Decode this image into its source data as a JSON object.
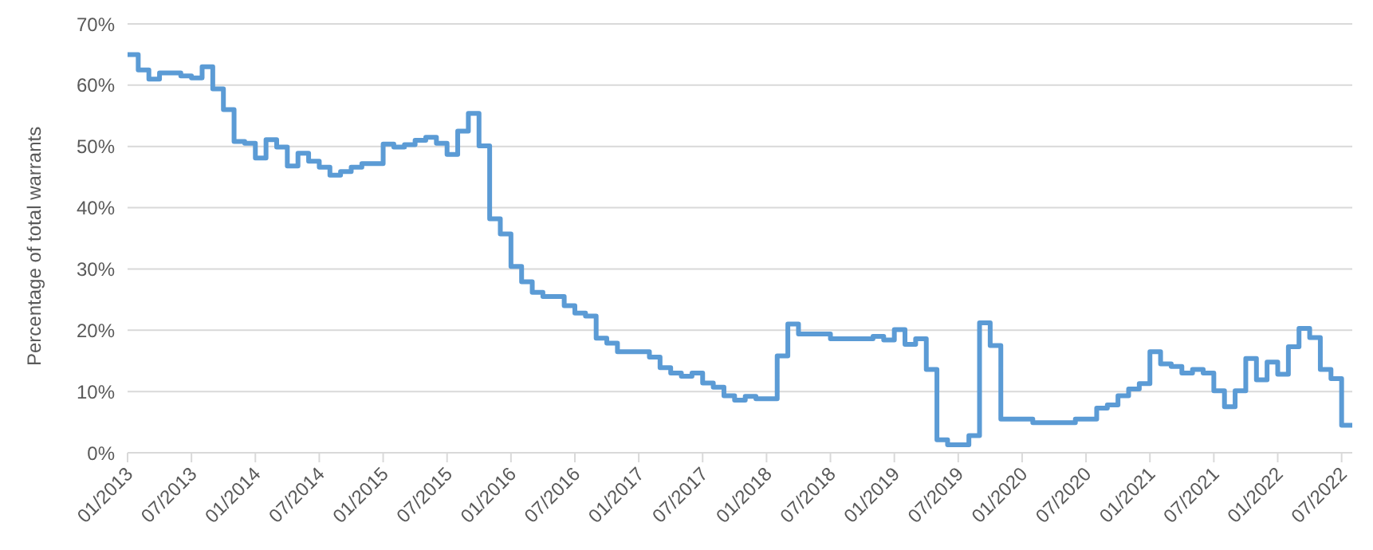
{
  "chart_data": {
    "type": "step",
    "ylabel": "Percentage of total warrants",
    "x": [
      "2013-01",
      "2013-02",
      "2013-03",
      "2013-04",
      "2013-06",
      "2013-07",
      "2013-08",
      "2013-09",
      "2013-10",
      "2013-11",
      "2013-12",
      "2014-01",
      "2014-02",
      "2014-03",
      "2014-04",
      "2014-05",
      "2014-06",
      "2014-07",
      "2014-08",
      "2014-09",
      "2014-10",
      "2014-11",
      "2015-01",
      "2015-02",
      "2015-03",
      "2015-04",
      "2015-05",
      "2015-06",
      "2015-07",
      "2015-08",
      "2015-09",
      "2015-10",
      "2015-11",
      "2015-12",
      "2016-01",
      "2016-02",
      "2016-03",
      "2016-04",
      "2016-06",
      "2016-07",
      "2016-08",
      "2016-09",
      "2016-10",
      "2016-11",
      "2017-02",
      "2017-03",
      "2017-04",
      "2017-05",
      "2017-06",
      "2017-07",
      "2017-08",
      "2017-09",
      "2017-10",
      "2017-11",
      "2017-12",
      "2018-02",
      "2018-03",
      "2018-04",
      "2018-07",
      "2018-11",
      "2018-12",
      "2019-01",
      "2019-02",
      "2019-03",
      "2019-04",
      "2019-05",
      "2019-06",
      "2019-08",
      "2019-09",
      "2019-10",
      "2019-11",
      "2020-02",
      "2020-06",
      "2020-08",
      "2020-09",
      "2020-10",
      "2020-11",
      "2020-12",
      "2021-01",
      "2021-02",
      "2021-03",
      "2021-04",
      "2021-05",
      "2021-06",
      "2021-07",
      "2021-08",
      "2021-09",
      "2021-10",
      "2021-11",
      "2021-12",
      "2022-01",
      "2022-02",
      "2022-03",
      "2022-04",
      "2022-05",
      "2022-06",
      "2022-07",
      "2022-08"
    ],
    "series": [
      {
        "color": "#5b9bd5",
        "values": [
          65,
          62.5,
          61,
          62,
          61.5,
          61.2,
          63,
          59.4,
          56,
          50.8,
          50.5,
          48.1,
          51.1,
          49.9,
          46.8,
          48.9,
          47.6,
          46.6,
          45.3,
          45.9,
          46.6,
          47.2,
          50.4,
          49.9,
          50.3,
          51,
          51.5,
          50.5,
          48.7,
          52.5,
          55.4,
          50.1,
          38.2,
          35.7,
          30.4,
          27.9,
          26.2,
          25.5,
          24.0,
          22.8,
          22.3,
          18.7,
          17.9,
          16.5,
          15.6,
          13.9,
          13.0,
          12.5,
          13.0,
          11.4,
          10.7,
          9.3,
          8.6,
          9.2,
          8.8,
          15.8,
          21.0,
          19.4,
          18.6,
          19.0,
          18.4,
          20.1,
          17.7,
          18.6,
          13.6,
          2.1,
          1.3,
          2.8,
          21.2,
          17.5,
          5.5,
          4.9,
          5.5,
          7.3,
          7.8,
          9.3,
          10.4,
          11.3,
          16.5,
          14.5,
          14.1,
          13.0,
          13.6,
          13.0,
          10.1,
          7.5,
          10.1,
          15.4,
          11.9,
          14.8,
          12.8,
          17.3,
          20.3,
          18.8,
          13.6,
          12.1,
          4.5,
          4.5
        ]
      }
    ],
    "xlim": [
      "2013-01",
      "2022-08"
    ],
    "xticks": [
      {
        "value": "2013-01",
        "label": "01/2013"
      },
      {
        "value": "2013-07",
        "label": "07/2013"
      },
      {
        "value": "2014-01",
        "label": "01/2014"
      },
      {
        "value": "2014-07",
        "label": "07/2014"
      },
      {
        "value": "2015-01",
        "label": "01/2015"
      },
      {
        "value": "2015-07",
        "label": "07/2015"
      },
      {
        "value": "2016-01",
        "label": "01/2016"
      },
      {
        "value": "2016-07",
        "label": "07/2016"
      },
      {
        "value": "2017-01",
        "label": "01/2017"
      },
      {
        "value": "2017-07",
        "label": "07/2017"
      },
      {
        "value": "2018-01",
        "label": "01/2018"
      },
      {
        "value": "2018-07",
        "label": "07/2018"
      },
      {
        "value": "2019-01",
        "label": "01/2019"
      },
      {
        "value": "2019-07",
        "label": "07/2019"
      },
      {
        "value": "2020-01",
        "label": "01/2020"
      },
      {
        "value": "2020-07",
        "label": "07/2020"
      },
      {
        "value": "2021-01",
        "label": "01/2021"
      },
      {
        "value": "2021-07",
        "label": "07/2021"
      },
      {
        "value": "2022-01",
        "label": "01/2022"
      },
      {
        "value": "2022-07",
        "label": "07/2022"
      }
    ],
    "ylim": [
      0,
      70
    ],
    "yticks": [
      {
        "value": 0,
        "label": "0%"
      },
      {
        "value": 10,
        "label": "10%"
      },
      {
        "value": 20,
        "label": "20%"
      },
      {
        "value": 30,
        "label": "30%"
      },
      {
        "value": 40,
        "label": "40%"
      },
      {
        "value": 50,
        "label": "50%"
      },
      {
        "value": 60,
        "label": "60%"
      },
      {
        "value": 70,
        "label": "70%"
      }
    ],
    "grid": "y"
  }
}
